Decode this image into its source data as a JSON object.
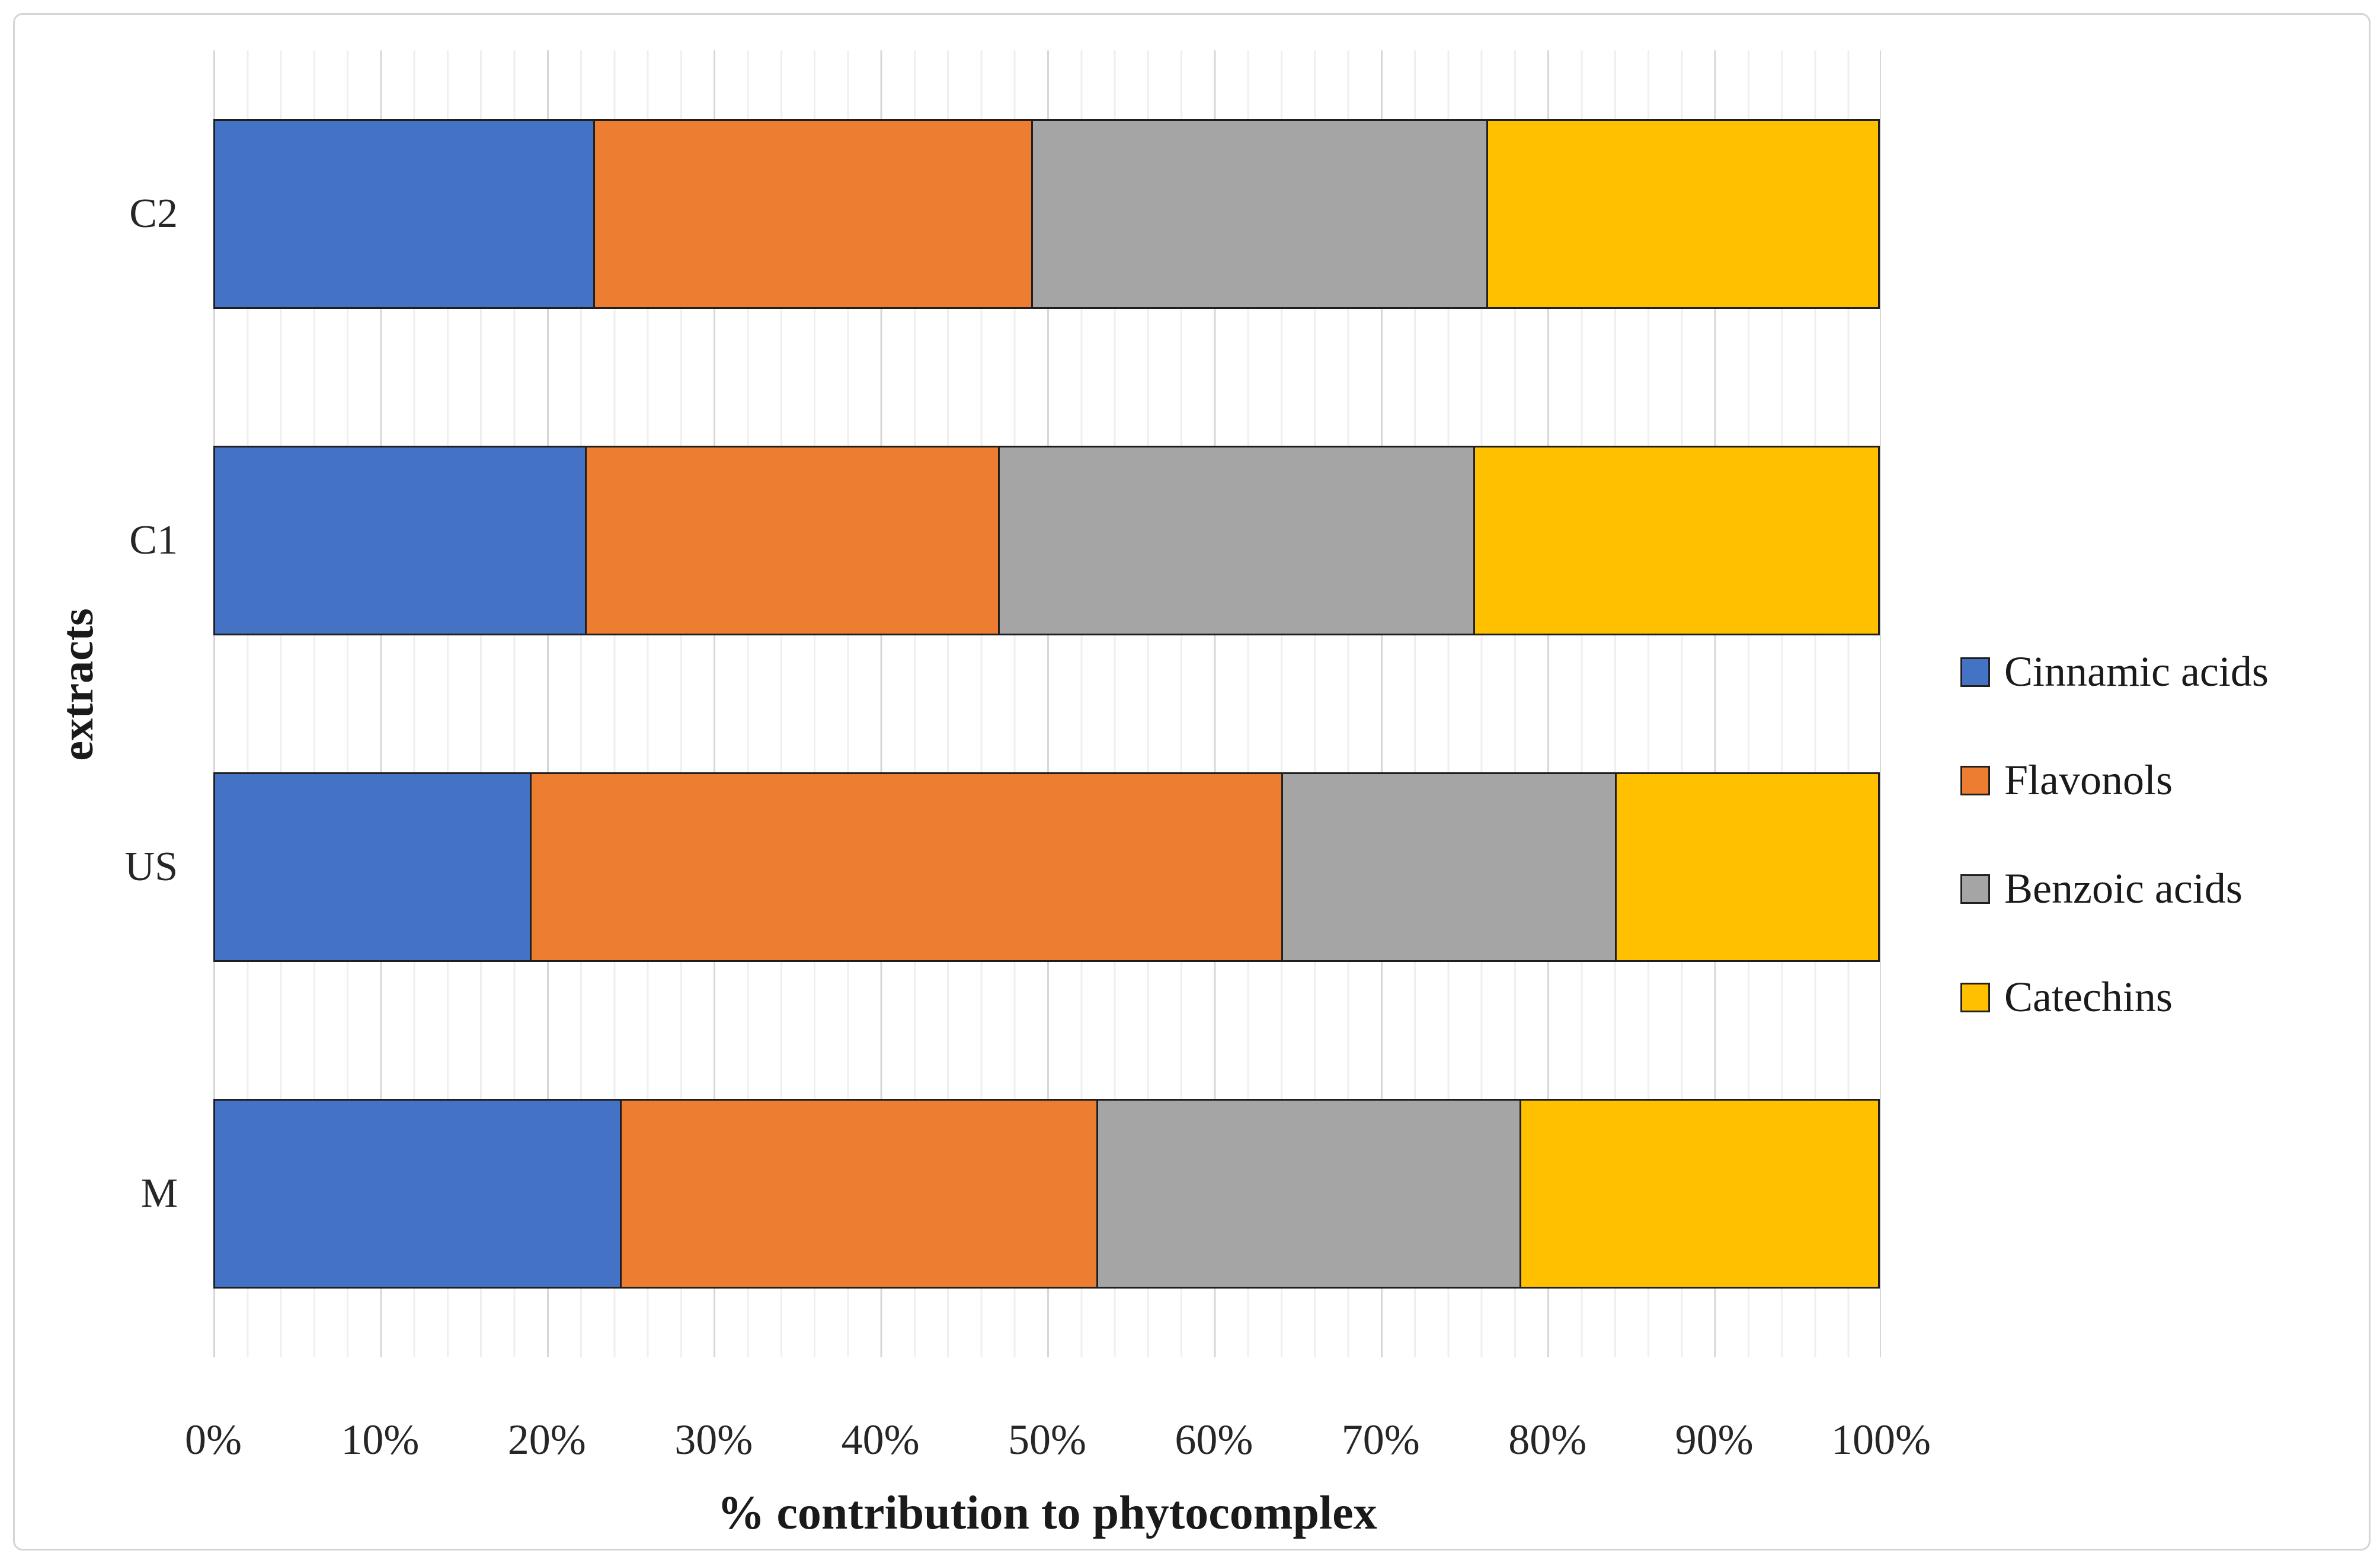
{
  "figure": {
    "x_axis_title": "% contribution to phytocomplex",
    "y_axis_title": "extracts"
  },
  "chart_data": {
    "type": "bar",
    "orientation": "horizontal",
    "stacked": true,
    "stack_total_pct": 100,
    "title": "",
    "xlabel": "% contribution to phytocomplex",
    "ylabel": "extracts",
    "xlim": [
      0,
      100
    ],
    "x_ticks": [
      "0%",
      "10%",
      "20%",
      "30%",
      "40%",
      "50%",
      "60%",
      "70%",
      "80%",
      "90%",
      "100%"
    ],
    "grid": true,
    "minor_grid_step_pct": 2,
    "major_grid_step_pct": 10,
    "legend_position": "right",
    "categories_top_to_bottom": [
      "C2",
      "C1",
      "US",
      "M"
    ],
    "series": [
      {
        "name": "Cinnamic acids",
        "color": "#4472C4",
        "values_pct": [
          22.9,
          22.4,
          19.1,
          24.5
        ]
      },
      {
        "name": "Flavonols",
        "color": "#ED7D31",
        "values_pct": [
          26.3,
          24.8,
          45.1,
          28.6
        ]
      },
      {
        "name": "Benzoic acids",
        "color": "#A5A5A5",
        "values_pct": [
          27.3,
          28.5,
          20.0,
          25.4
        ]
      },
      {
        "name": "Catechins",
        "color": "#FFC000",
        "values_pct": [
          23.5,
          24.3,
          15.8,
          21.5
        ]
      }
    ],
    "colors": {
      "bar_border": "#1f1f1f",
      "minor_gridline": "#efefef",
      "major_gridline": "#d7d7d7",
      "text": "#1a1a1a",
      "figure_border": "#d5d5d5"
    }
  }
}
